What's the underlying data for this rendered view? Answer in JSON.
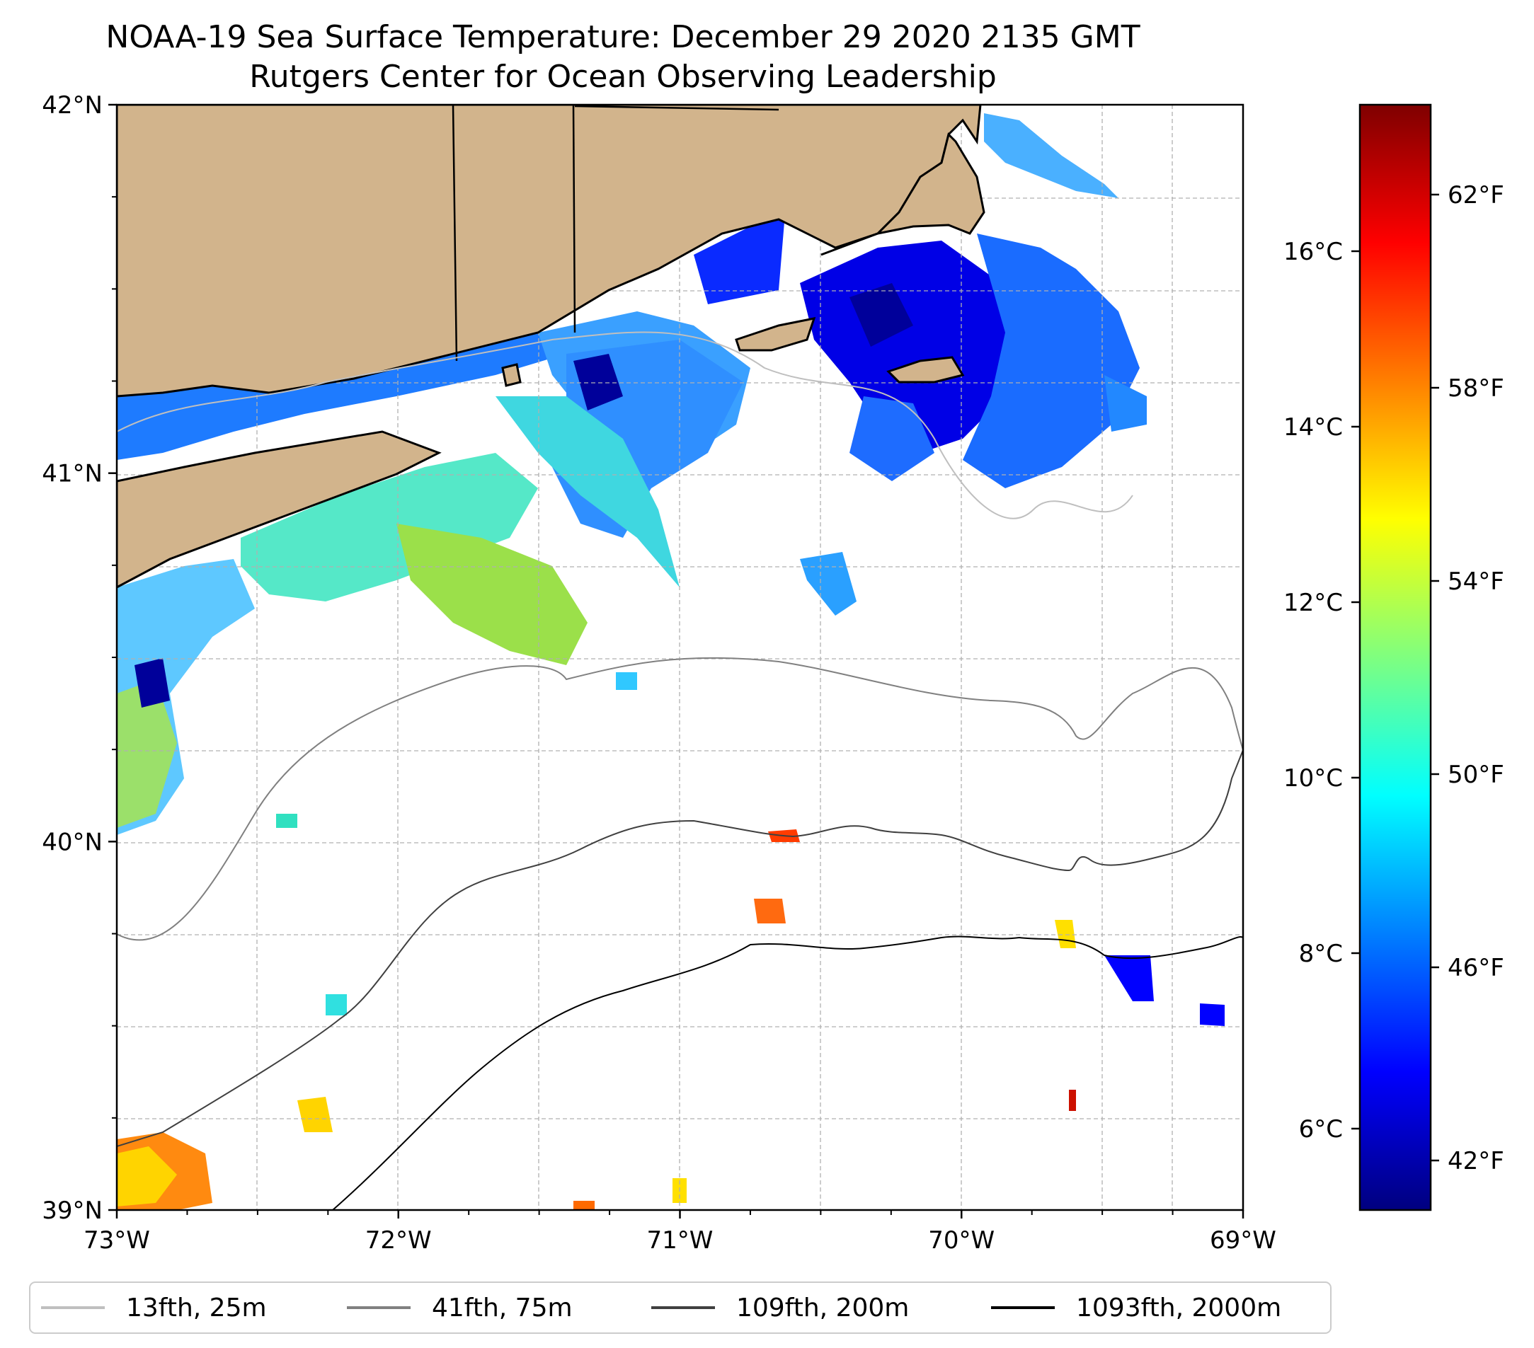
{
  "title": {
    "line1": "NOAA-19 Sea Surface Temperature: December 29 2020 2135 GMT",
    "line2": "Rutgers Center for Ocean Observing Leadership"
  },
  "map": {
    "lon_range": [
      -73,
      -69
    ],
    "lat_range": [
      39,
      42
    ],
    "x_ticks": [
      {
        "lon": -73,
        "label": "73°W"
      },
      {
        "lon": -72,
        "label": "72°W"
      },
      {
        "lon": -71,
        "label": "71°W"
      },
      {
        "lon": -70,
        "label": "70°W"
      },
      {
        "lon": -69,
        "label": "69°W"
      }
    ],
    "y_ticks": [
      {
        "lat": 42,
        "label": "42°N"
      },
      {
        "lat": 41,
        "label": "41°N"
      },
      {
        "lat": 40,
        "label": "40°N"
      },
      {
        "lat": 39,
        "label": "39°N"
      }
    ],
    "gridlines": true,
    "land_color": "#d2b48c",
    "coastline_color": "#000000"
  },
  "colorbar": {
    "colormap": "jet",
    "celsius_labels": [
      "16°C",
      "14°C",
      "12°C",
      "10°C",
      "8°C",
      "6°C"
    ],
    "fahrenheit_labels": [
      "62°F",
      "58°F",
      "54°F",
      "50°F",
      "46°F",
      "42°F"
    ],
    "colors": [
      "#00007f",
      "#0000ff",
      "#007fff",
      "#00ffff",
      "#7fff7f",
      "#ffff00",
      "#ff7f00",
      "#ff0000",
      "#7f0000"
    ]
  },
  "legend": {
    "placement": "bottom",
    "entries": [
      {
        "label": "13fth, 25m",
        "color": "#bfbfbf"
      },
      {
        "label": "41fth, 75m",
        "color": "#808080"
      },
      {
        "label": "109fth, 200m",
        "color": "#404040"
      },
      {
        "label": "1093fth, 2000m",
        "color": "#000000"
      }
    ]
  },
  "chart_data": {
    "type": "heatmap",
    "title": "NOAA-19 Sea Surface Temperature: December 29 2020 2135 GMT",
    "subtitle": "Rutgers Center for Ocean Observing Leadership",
    "x_tick_labels": [
      "73°W",
      "72°W",
      "71°W",
      "70°W",
      "69°W"
    ],
    "y_tick_labels": [
      "42°N",
      "41°N",
      "40°N",
      "39°N"
    ],
    "colorbar_labels_c": [
      "16°C",
      "14°C",
      "12°C",
      "10°C",
      "8°C",
      "6°C"
    ],
    "colorbar_labels_f": [
      "62°F",
      "58°F",
      "54°F",
      "50°F",
      "46°F",
      "42°F"
    ],
    "legend": [
      "13fth, 25m",
      "41fth, 75m",
      "109fth, 200m",
      "1093fth, 2000m"
    ]
  }
}
